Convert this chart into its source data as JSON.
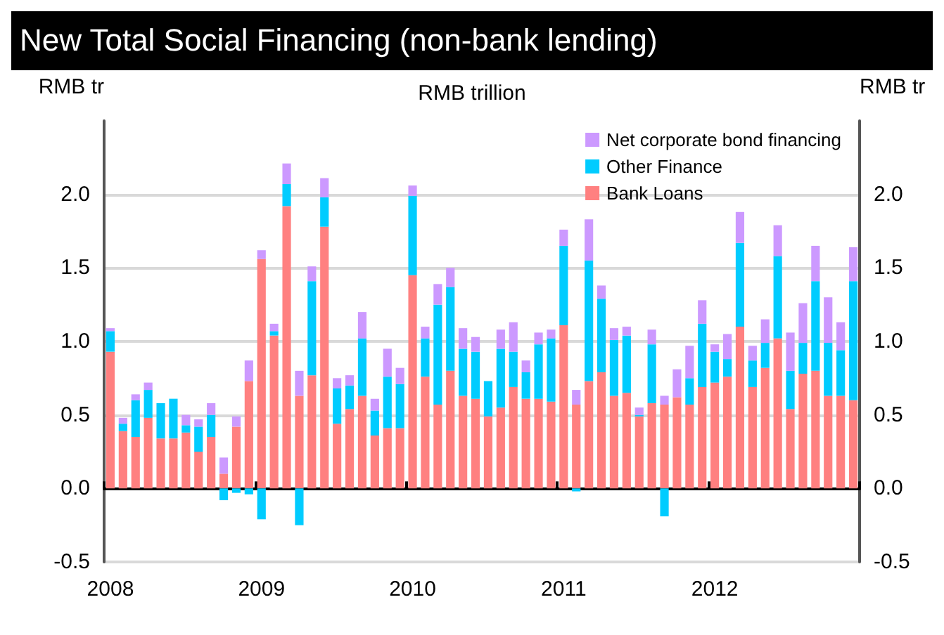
{
  "chart_data": {
    "type": "bar",
    "title": "New Total Social Financing (non-bank lending)",
    "subtitle": "RMB trillion",
    "ylabel": "RMB tr",
    "y2label": "RMB tr",
    "categories": [
      "2008",
      null,
      null,
      null,
      null,
      null,
      null,
      null,
      null,
      null,
      null,
      null,
      "2009",
      null,
      null,
      null,
      null,
      null,
      null,
      null,
      null,
      null,
      null,
      null,
      "2010",
      null,
      null,
      null,
      null,
      null,
      null,
      null,
      null,
      null,
      null,
      null,
      "2011",
      null,
      null,
      null,
      null,
      null,
      null,
      null,
      null,
      null,
      null,
      null,
      "2012",
      null,
      null,
      null,
      null,
      null,
      null,
      null,
      null,
      null,
      null,
      null
    ],
    "stacked": true,
    "series": [
      {
        "name": "Bank Loans",
        "color": "#ff8080",
        "values": [
          0.93,
          0.39,
          0.35,
          0.48,
          0.34,
          0.34,
          0.38,
          0.25,
          0.35,
          0.1,
          0.42,
          0.73,
          1.56,
          1.04,
          1.92,
          0.63,
          0.77,
          1.78,
          0.44,
          0.54,
          0.63,
          0.36,
          0.41,
          0.41,
          1.45,
          0.76,
          0.57,
          0.8,
          0.63,
          0.61,
          0.49,
          0.55,
          0.69,
          0.61,
          0.61,
          0.59,
          1.11,
          0.57,
          0.73,
          0.79,
          0.63,
          0.65,
          0.49,
          0.58,
          0.57,
          0.62,
          0.57,
          0.69,
          0.72,
          0.76,
          1.1,
          0.69,
          0.82,
          1.02,
          0.54,
          0.78,
          0.8,
          0.63,
          0.63,
          0.6
        ]
      },
      {
        "name": "Other Finance",
        "color": "#00ccff",
        "values": [
          0.14,
          0.05,
          0.25,
          0.19,
          0.24,
          0.27,
          0.05,
          0.17,
          0.15,
          -0.08,
          -0.03,
          -0.04,
          -0.21,
          0.03,
          0.15,
          -0.25,
          0.64,
          0.2,
          0.24,
          0.16,
          0.39,
          0.17,
          0.35,
          0.3,
          0.54,
          0.26,
          0.68,
          0.57,
          0.32,
          0.32,
          0.24,
          0.4,
          0.24,
          0.18,
          0.37,
          0.43,
          0.54,
          -0.02,
          0.82,
          0.5,
          0.38,
          0.39,
          0.01,
          0.4,
          -0.19,
          0,
          0.18,
          0.43,
          0.21,
          0.12,
          0.57,
          0.18,
          0.17,
          0.56,
          0.26,
          0.21,
          0.61,
          0.36,
          0.31,
          0.81
        ]
      },
      {
        "name": "Net corporate bond financing",
        "color": "#cc99ff",
        "values": [
          0.02,
          0.04,
          0.04,
          0.05,
          0,
          0,
          0.07,
          0.05,
          0.08,
          0.11,
          0.07,
          0.14,
          0.06,
          0.05,
          0.14,
          0.17,
          0.1,
          0.13,
          0.07,
          0.07,
          0.18,
          0.08,
          0.19,
          0.11,
          0.07,
          0.08,
          0.14,
          0.13,
          0.14,
          0.1,
          0,
          0.13,
          0.2,
          0.08,
          0.08,
          0.06,
          0.11,
          0.1,
          0.28,
          0.09,
          0.08,
          0.06,
          0.05,
          0.1,
          0.06,
          0.19,
          0.22,
          0.16,
          0.05,
          0.17,
          0.21,
          0.1,
          0.16,
          0.21,
          0.26,
          0.27,
          0.24,
          0.31,
          0.19,
          0.23
        ]
      }
    ],
    "ylim": [
      -0.5,
      2.5
    ],
    "yticks": [
      {
        "value": -0.5,
        "label": "-0.5"
      },
      {
        "value": 0,
        "label": "0.0"
      },
      {
        "value": 0.5,
        "label": "0.5"
      },
      {
        "value": 1,
        "label": "1.0"
      },
      {
        "value": 1.5,
        "label": "1.5"
      },
      {
        "value": 2,
        "label": "2.0"
      }
    ],
    "y2lim": [
      -0.5,
      2.5
    ],
    "y2ticks": [
      {
        "value": -0.5,
        "label": "-0.5"
      },
      {
        "value": 0,
        "label": "0.0"
      },
      {
        "value": 0.5,
        "label": "0.5"
      },
      {
        "value": 1,
        "label": "1.0"
      },
      {
        "value": 1.5,
        "label": "1.5"
      },
      {
        "value": 2,
        "label": "2.0"
      }
    ],
    "grid": "y",
    "legend": "top right"
  }
}
